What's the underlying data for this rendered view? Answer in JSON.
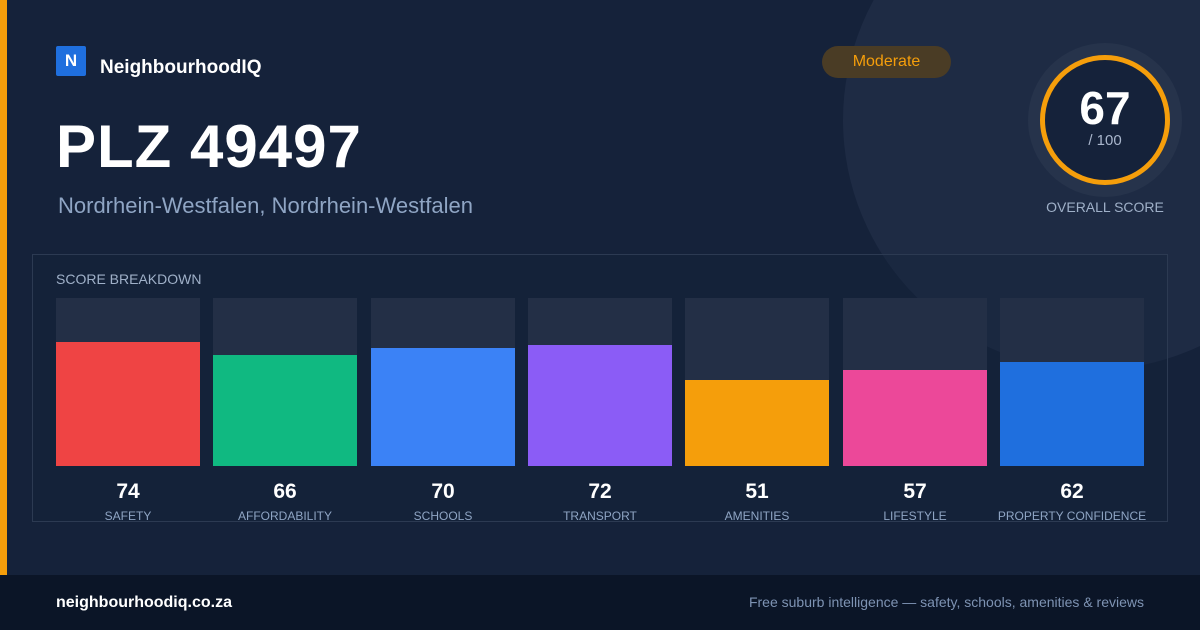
{
  "brand": {
    "logo_letter": "N",
    "name": "NeighbourhoodIQ",
    "accent": "#f59e0b",
    "logo_color": "#1f6fde"
  },
  "header": {
    "title": "PLZ 49497",
    "subtitle": "Nordrhein-Westfalen, Nordrhein-Westfalen",
    "rating": "Moderate"
  },
  "overall": {
    "score": "67",
    "max": "/ 100",
    "label": "OVERALL SCORE",
    "ring_color": "#f59e0b"
  },
  "breakdown": {
    "title": "SCORE BREAKDOWN",
    "items": [
      {
        "value": "74",
        "label": "SAFETY",
        "color": "#ef4444"
      },
      {
        "value": "66",
        "label": "AFFORDABILITY",
        "color": "#10b981"
      },
      {
        "value": "70",
        "label": "SCHOOLS",
        "color": "#3b82f6"
      },
      {
        "value": "72",
        "label": "TRANSPORT",
        "color": "#8b5cf6"
      },
      {
        "value": "51",
        "label": "AMENITIES",
        "color": "#f59e0b"
      },
      {
        "value": "57",
        "label": "LIFESTYLE",
        "color": "#ec4899"
      },
      {
        "value": "62",
        "label": "PROPERTY CONFIDENCE",
        "color": "#1f6fde"
      }
    ]
  },
  "footer": {
    "site": "neighbourhoodiq.co.za",
    "tagline": "Free suburb intelligence — safety, schools, amenities & reviews"
  }
}
